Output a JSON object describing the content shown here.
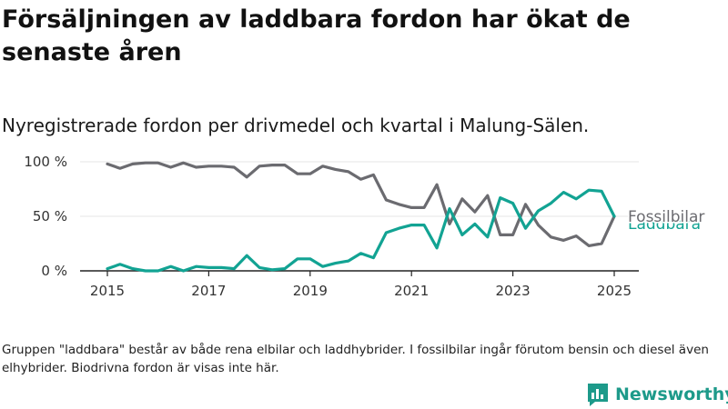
{
  "title": "Försäljningen av laddbara fordon har ökat de senaste åren",
  "subtitle": "Nyregistrerade fordon per drivmedel och kvartal i Malung-Sälen.",
  "footnote": "Gruppen \"laddbara\" består av både rena elbilar och laddhybrider. I fossilbilar ingår förutom bensin och diesel även elhybrider. Biodrivna fordon är visas inte här.",
  "brand": {
    "name": "Newsworthy",
    "icon": "newsworthy-logo-icon",
    "color": "#1d9a8a"
  },
  "chart_data": {
    "type": "line",
    "title": "Nyregistrerade fordon per drivmedel och kvartal i Malung-Sälen.",
    "xlabel": "",
    "ylabel": "",
    "xlim": [
      2015,
      2025
    ],
    "ylim": [
      0,
      100
    ],
    "x_ticks": [
      "2015",
      "2017",
      "2019",
      "2021",
      "2023",
      "2025"
    ],
    "y_ticks": [
      "0 %",
      "50 %",
      "100 %"
    ],
    "grid": true,
    "legend": "direct-labels-right",
    "x": [
      "2015-Q1",
      "2015-Q2",
      "2015-Q3",
      "2015-Q4",
      "2016-Q1",
      "2016-Q2",
      "2016-Q3",
      "2016-Q4",
      "2017-Q1",
      "2017-Q2",
      "2017-Q3",
      "2017-Q4",
      "2018-Q1",
      "2018-Q2",
      "2018-Q3",
      "2018-Q4",
      "2019-Q1",
      "2019-Q2",
      "2019-Q3",
      "2019-Q4",
      "2020-Q1",
      "2020-Q2",
      "2020-Q3",
      "2020-Q4",
      "2021-Q1",
      "2021-Q2",
      "2021-Q3",
      "2021-Q4",
      "2022-Q1",
      "2022-Q2",
      "2022-Q3",
      "2022-Q4",
      "2023-Q1",
      "2023-Q2",
      "2023-Q3",
      "2023-Q4",
      "2024-Q1",
      "2024-Q2",
      "2024-Q3",
      "2024-Q4",
      "2025-Q1"
    ],
    "series": [
      {
        "name": "Fossilbilar",
        "color": "#6b6b70",
        "values": [
          98,
          94,
          98,
          99,
          99,
          95,
          99,
          95,
          96,
          96,
          95,
          86,
          96,
          97,
          97,
          89,
          89,
          96,
          93,
          91,
          84,
          88,
          65,
          61,
          58,
          58,
          79,
          43,
          66,
          54,
          69,
          33,
          33,
          61,
          42,
          31,
          28,
          32,
          23,
          25,
          50
        ]
      },
      {
        "name": "Laddbara",
        "color": "#12a393",
        "values": [
          2,
          6,
          2,
          0,
          0,
          4,
          0,
          4,
          3,
          3,
          2,
          14,
          3,
          1,
          2,
          11,
          11,
          4,
          7,
          9,
          16,
          12,
          35,
          39,
          42,
          42,
          21,
          57,
          33,
          43,
          31,
          67,
          62,
          39,
          55,
          62,
          72,
          66,
          74,
          73,
          50
        ]
      }
    ]
  }
}
